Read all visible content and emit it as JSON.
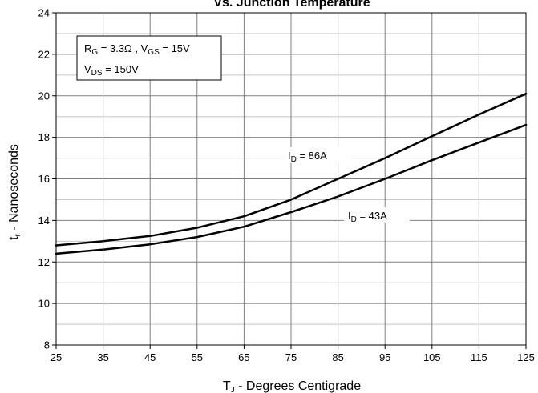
{
  "chart_data": {
    "type": "line",
    "title": "Vs. Junction Temperature",
    "xlabel": {
      "main": "T",
      "sub": "J",
      "rest": " - Degrees Centigrade"
    },
    "ylabel": {
      "main": "t",
      "sub": "r",
      "rest": " - Nanoseconds"
    },
    "xlim": [
      25,
      125
    ],
    "ylim": [
      8,
      24
    ],
    "xticks": [
      "25",
      "35",
      "45",
      "55",
      "65",
      "75",
      "85",
      "95",
      "105",
      "115",
      "125"
    ],
    "yticks": [
      "8",
      "10",
      "12",
      "14",
      "16",
      "18",
      "20",
      "22",
      "24"
    ],
    "grid": true,
    "conditions": {
      "line1": {
        "rg_main": "R",
        "rg_sub": "G",
        "rg_val": " = 3.3Ω , ",
        "vgs_main": "V",
        "vgs_sub": "GS",
        "vgs_val": " = 15V"
      },
      "line2": {
        "vds_main": "V",
        "vds_sub": "DS",
        "vds_val": " = 150V"
      }
    },
    "series": [
      {
        "name": "ID = 86A",
        "label_main": "I",
        "label_sub": "D",
        "label_val": " = 86A",
        "x": [
          25,
          35,
          45,
          55,
          65,
          75,
          85,
          95,
          105,
          115,
          125
        ],
        "y": [
          12.8,
          13.0,
          13.25,
          13.65,
          14.2,
          15.0,
          16.0,
          17.0,
          18.05,
          19.1,
          20.1
        ]
      },
      {
        "name": "ID = 43A",
        "label_main": "I",
        "label_sub": "D",
        "label_val": " = 43A",
        "x": [
          25,
          35,
          45,
          55,
          65,
          75,
          85,
          95,
          105,
          115,
          125
        ],
        "y": [
          12.4,
          12.6,
          12.85,
          13.2,
          13.7,
          14.4,
          15.15,
          16.0,
          16.9,
          17.75,
          18.6
        ]
      }
    ]
  }
}
